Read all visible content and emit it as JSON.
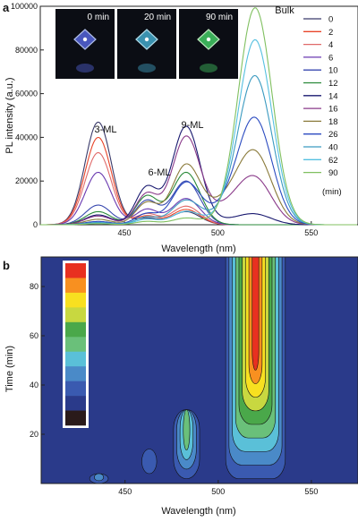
{
  "chart_data": [
    {
      "type": "line",
      "panel": "a",
      "xlabel": "Wavelength (nm)",
      "ylabel": "PL intensity (a.u.)",
      "xlim": [
        405,
        575
      ],
      "ylim": [
        0,
        100000
      ],
      "x_ticks": [
        450,
        500,
        550
      ],
      "y_ticks": [
        0,
        20000,
        40000,
        60000,
        80000,
        100000
      ],
      "legend_title": "(min)",
      "legend_position": "right",
      "annotations": [
        "3-ML",
        "6-ML",
        "9-ML",
        "Bulk"
      ],
      "inset_labels": [
        "0 min",
        "20 min",
        "90 min"
      ],
      "peaks_nm": [
        436,
        462,
        483,
        520
      ],
      "series": [
        {
          "name": "0",
          "color": "#3a3a6a",
          "peak_heights": [
            47000,
            3000,
            6000,
            0
          ]
        },
        {
          "name": "2",
          "color": "#e8452a",
          "peak_heights": [
            40000,
            4000,
            7000,
            0
          ]
        },
        {
          "name": "4",
          "color": "#e06a6a",
          "peak_heights": [
            33000,
            5000,
            8500,
            0
          ]
        },
        {
          "name": "6",
          "color": "#6a3ab0",
          "peak_heights": [
            24000,
            7000,
            12000,
            0
          ]
        },
        {
          "name": "10",
          "color": "#3a4ab0",
          "peak_heights": [
            9000,
            11000,
            20000,
            0
          ]
        },
        {
          "name": "12",
          "color": "#2a8a3a",
          "peak_heights": [
            6000,
            13000,
            24000,
            0
          ]
        },
        {
          "name": "14",
          "color": "#1a1a70",
          "peak_heights": [
            4500,
            17000,
            45000,
            4500
          ]
        },
        {
          "name": "16",
          "color": "#8a3a8a",
          "peak_heights": [
            4000,
            14000,
            40000,
            20000
          ]
        },
        {
          "name": "18",
          "color": "#8a7a3a",
          "peak_heights": [
            2500,
            10000,
            27000,
            31000
          ]
        },
        {
          "name": "26",
          "color": "#2a4ac0",
          "peak_heights": [
            1500,
            5000,
            19000,
            47000
          ]
        },
        {
          "name": "40",
          "color": "#3a9ac0",
          "peak_heights": [
            1000,
            3500,
            11000,
            67000
          ]
        },
        {
          "name": "62",
          "color": "#55c0e0",
          "peak_heights": [
            700,
            2500,
            6000,
            84000
          ]
        },
        {
          "name": "90",
          "color": "#80c060",
          "peak_heights": [
            500,
            1500,
            3000,
            99000
          ]
        }
      ]
    },
    {
      "type": "heatmap",
      "panel": "b",
      "xlabel": "Wavelength (nm)",
      "ylabel": "Time (min)",
      "xlim": [
        405,
        575
      ],
      "ylim": [
        0,
        92
      ],
      "x_ticks": [
        450,
        500,
        550
      ],
      "y_ticks": [
        20,
        40,
        60,
        80
      ],
      "colorscale": [
        "#2a1a1a",
        "#2a3a8a",
        "#3a5ab0",
        "#4a8ac8",
        "#5ac0d8",
        "#6ac07a",
        "#4aa84a",
        "#c8d840",
        "#f8e020",
        "#f89020",
        "#e83020"
      ],
      "features": [
        {
          "center_nm": 520,
          "width_nm": 32,
          "t_start": 2,
          "t_end": 92,
          "max_level": 10
        },
        {
          "center_nm": 483,
          "width_nm": 14,
          "t_start": 2,
          "t_end": 30,
          "max_level": 5
        },
        {
          "center_nm": 436,
          "width_nm": 10,
          "t_start": 0,
          "t_end": 4,
          "max_level": 3
        },
        {
          "center_nm": 463,
          "width_nm": 8,
          "t_start": 4,
          "t_end": 14,
          "max_level": 2
        }
      ]
    }
  ]
}
